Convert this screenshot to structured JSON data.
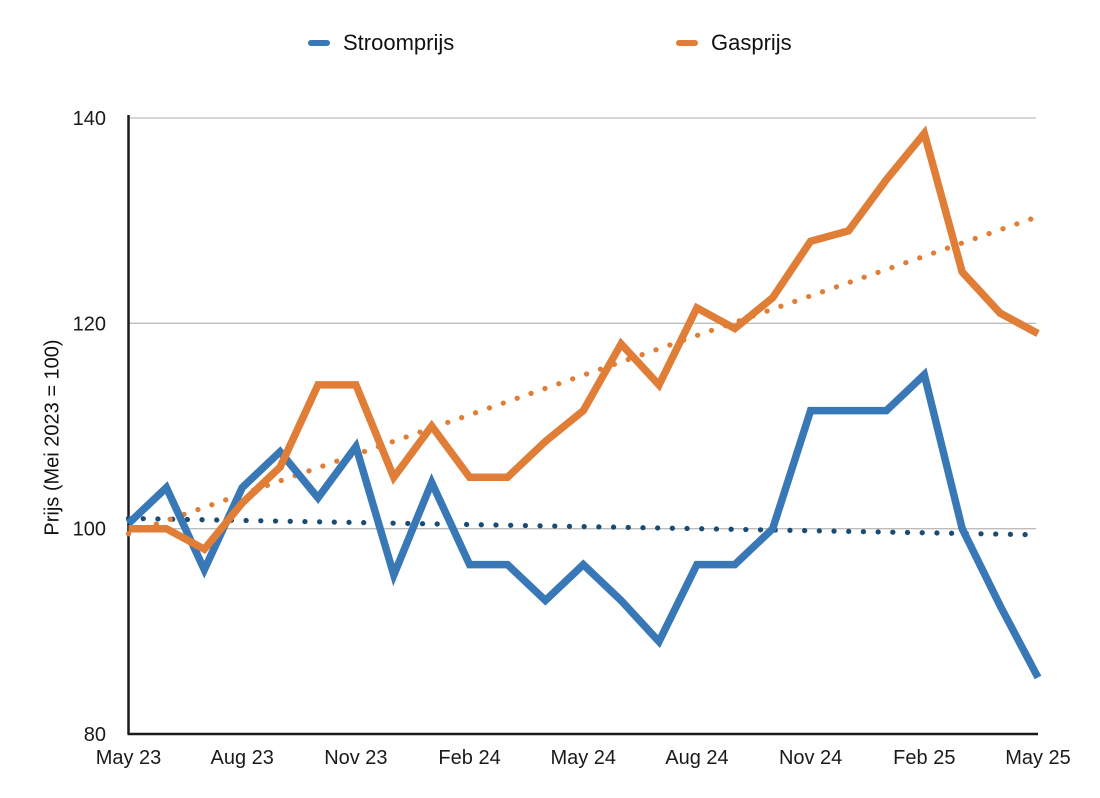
{
  "legend": {
    "items": [
      {
        "label": "Stroomprijs",
        "color": "#3878B6"
      },
      {
        "label": "Gasprijs",
        "color": "#E07E38"
      }
    ]
  },
  "y_axis": {
    "label": "Prijs (Mei 2023 = 100)",
    "ticks": [
      80,
      100,
      120,
      140
    ]
  },
  "x_axis": {
    "tick_labels": [
      "May 23",
      "Aug 23",
      "Nov 23",
      "Feb 24",
      "May 24",
      "Aug 24",
      "Nov 24",
      "Feb 25",
      "May 25"
    ],
    "ticks_every_n_months": 3
  },
  "colors": {
    "stroomprijs_line": "#3878B6",
    "gasprijs_line": "#E07E38",
    "stroomprijs_trend_dots": "#1C4B72",
    "gasprijs_trend_dots": "#E07E38",
    "gridline": "#BDBDBD",
    "axis": "#1a1a1a",
    "text": "#1a1a1a"
  },
  "chart_data": {
    "type": "line",
    "title": "",
    "xlabel": "",
    "ylabel": "Prijs (Mei 2023 = 100)",
    "ylim": [
      80,
      140
    ],
    "grid": "horizontal gridlines at 100, 120, 140",
    "legend_position": "top",
    "x": [
      "May 23",
      "Jun 23",
      "Jul 23",
      "Aug 23",
      "Sep 23",
      "Oct 23",
      "Nov 23",
      "Dec 23",
      "Jan 24",
      "Feb 24",
      "Mar 24",
      "Apr 24",
      "May 24",
      "Jun 24",
      "Jul 24",
      "Aug 24",
      "Sep 24",
      "Oct 24",
      "Nov 24",
      "Dec 24",
      "Jan 25",
      "Feb 25",
      "Mar 25",
      "Apr 25",
      "May 25"
    ],
    "series": [
      {
        "name": "Stroomprijs",
        "style": "solid",
        "color": "#3878B6",
        "values": [
          100.5,
          104,
          96,
          104,
          107.5,
          103,
          108,
          95.5,
          104.5,
          96.5,
          96.5,
          93,
          96.5,
          93,
          89,
          96.5,
          96.5,
          100,
          111.5,
          111.5,
          111.5,
          115,
          100,
          92.5,
          85.5
        ]
      },
      {
        "name": "Gasprijs",
        "style": "solid",
        "color": "#E07E38",
        "values": [
          100,
          100,
          98,
          102.5,
          106,
          114,
          114,
          105,
          110,
          105,
          105,
          108.5,
          111.5,
          118,
          114,
          121.5,
          119.5,
          122.5,
          128,
          129,
          134,
          138.5,
          125,
          121,
          119
        ]
      }
    ],
    "trendlines": [
      {
        "name": "Stroomprijs trend",
        "style": "dotted",
        "color": "#1C4B72",
        "start_value": 101.0,
        "end_value": 99.4
      },
      {
        "name": "Gasprijs trend",
        "style": "dotted",
        "color": "#E07E38",
        "start_value": 99.5,
        "end_value": 130.4
      }
    ]
  }
}
